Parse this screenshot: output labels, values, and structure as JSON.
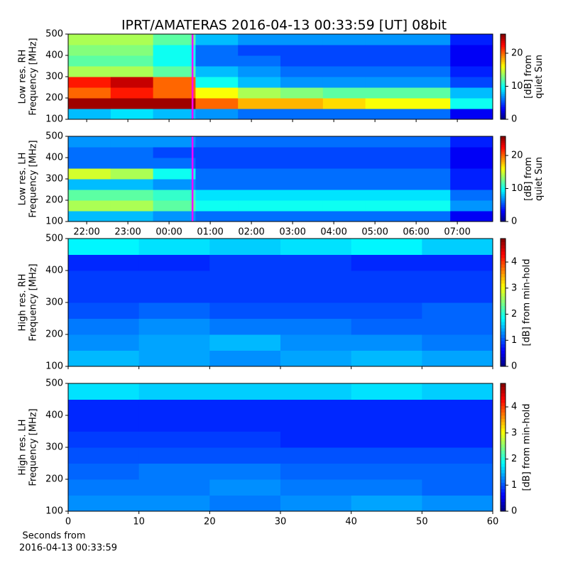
{
  "title": "IPRT/AMATERAS 2016-04-13 00:33:59 [UT]   08bit",
  "xlabel": [
    "Seconds from",
    "2016-04-13 00:33:59"
  ],
  "chart_data": [
    {
      "type": "heatmap",
      "colormap": "jet",
      "ylabel": [
        "Low res. RH",
        "Frequency [MHz]"
      ],
      "ylim": [
        100,
        500
      ],
      "yticks": [
        100,
        200,
        300,
        400,
        500
      ],
      "xlim": [
        21.55,
        31.86
      ],
      "xticks": [
        {
          "value": 22,
          "label": "22:00"
        },
        {
          "value": 23,
          "label": "23:00"
        },
        {
          "value": 24,
          "label": "00:00"
        },
        {
          "value": 25,
          "label": "01:00"
        },
        {
          "value": 26,
          "label": "02:00"
        },
        {
          "value": 27,
          "label": "03:00"
        },
        {
          "value": 28,
          "label": "04:00"
        },
        {
          "value": 29,
          "label": "05:00"
        },
        {
          "value": 30,
          "label": "06:00"
        },
        {
          "value": 31,
          "label": "07:00"
        }
      ],
      "show_xticklabels": false,
      "marker_x": 24.57,
      "marker_color": "#ff00ff",
      "clim": [
        0,
        25.8
      ],
      "cticks": [
        0,
        10,
        20
      ],
      "clabel": [
        "[dB] from",
        "quiet Sun"
      ],
      "z": [
        [
          8,
          9,
          8,
          7,
          6,
          6,
          6,
          6,
          6,
          3
        ],
        [
          25,
          25,
          25,
          20,
          18,
          18,
          17,
          16,
          16,
          10
        ],
        [
          20,
          22,
          20,
          16,
          14,
          13,
          12,
          12,
          12,
          8
        ],
        [
          22,
          24,
          20,
          10,
          8,
          7,
          7,
          7,
          7,
          5
        ],
        [
          14,
          14,
          12,
          8,
          7,
          6,
          6,
          6,
          6,
          4
        ],
        [
          12,
          12,
          10,
          6,
          6,
          5,
          5,
          5,
          5,
          3
        ],
        [
          13,
          13,
          10,
          6,
          5,
          5,
          5,
          5,
          5,
          3
        ],
        [
          14,
          14,
          12,
          8,
          7,
          7,
          7,
          7,
          7,
          4
        ]
      ]
    },
    {
      "type": "heatmap",
      "colormap": "jet",
      "ylabel": [
        "Low res. LH",
        "Frequency [MHz]"
      ],
      "ylim": [
        100,
        500
      ],
      "yticks": [
        100,
        200,
        300,
        400,
        500
      ],
      "xlim": [
        21.55,
        31.86
      ],
      "xticks": [
        {
          "value": 22,
          "label": "22:00"
        },
        {
          "value": 23,
          "label": "23:00"
        },
        {
          "value": 24,
          "label": "00:00"
        },
        {
          "value": 25,
          "label": "01:00"
        },
        {
          "value": 26,
          "label": "02:00"
        },
        {
          "value": 27,
          "label": "03:00"
        },
        {
          "value": 28,
          "label": "04:00"
        },
        {
          "value": 29,
          "label": "05:00"
        },
        {
          "value": 30,
          "label": "06:00"
        },
        {
          "value": 31,
          "label": "07:00"
        }
      ],
      "show_xticklabels": true,
      "marker_x": 24.57,
      "marker_color": "#ff00ff",
      "clim": [
        0,
        25.8
      ],
      "cticks": [
        0,
        10,
        20
      ],
      "clabel": [
        "[dB] from",
        "quiet Sun"
      ],
      "z": [
        [
          8,
          8,
          7,
          6,
          6,
          6,
          6,
          6,
          6,
          3
        ],
        [
          14,
          14,
          12,
          10,
          10,
          10,
          10,
          10,
          10,
          7
        ],
        [
          12,
          12,
          11,
          9,
          9,
          9,
          9,
          9,
          9,
          6
        ],
        [
          8,
          8,
          7,
          6,
          6,
          6,
          6,
          6,
          6,
          4
        ],
        [
          15,
          14,
          10,
          6,
          6,
          6,
          6,
          6,
          6,
          4
        ],
        [
          6,
          6,
          6,
          5,
          5,
          5,
          5,
          5,
          5,
          3
        ],
        [
          6,
          6,
          5,
          5,
          5,
          5,
          5,
          5,
          5,
          3
        ],
        [
          7,
          7,
          7,
          6,
          6,
          6,
          6,
          6,
          6,
          4
        ]
      ]
    },
    {
      "type": "heatmap",
      "colormap": "jet",
      "ylabel": [
        "High res. RH",
        "Frequency [MHz]"
      ],
      "ylim": [
        100,
        500
      ],
      "yticks": [
        100,
        200,
        300,
        400,
        500
      ],
      "xlim": [
        0,
        60
      ],
      "xticks": [
        0,
        10,
        20,
        30,
        40,
        50,
        60
      ],
      "show_xticklabels": false,
      "clim": [
        0,
        4.9
      ],
      "cticks": [
        0,
        1,
        2,
        3,
        4
      ],
      "clabel": [
        "[dB] from min-hold"
      ],
      "z": [
        [
          1.5,
          1.4,
          1.3,
          1.4,
          1.5,
          1.4
        ],
        [
          1.3,
          1.4,
          1.5,
          1.3,
          1.3,
          1.2
        ],
        [
          1.2,
          1.3,
          1.2,
          1.2,
          1.1,
          1.1
        ],
        [
          1.0,
          1.1,
          1.0,
          1.0,
          1.0,
          1.1
        ],
        [
          0.9,
          0.9,
          0.9,
          0.9,
          0.9,
          0.9
        ],
        [
          0.9,
          0.9,
          0.9,
          0.9,
          0.9,
          0.9
        ],
        [
          0.8,
          0.8,
          0.9,
          0.9,
          0.8,
          0.8
        ],
        [
          1.8,
          1.7,
          1.6,
          1.7,
          1.8,
          1.6
        ]
      ]
    },
    {
      "type": "heatmap",
      "colormap": "jet",
      "ylabel": [
        "High res. LH",
        "Frequency [MHz]"
      ],
      "ylim": [
        100,
        500
      ],
      "yticks": [
        100,
        200,
        300,
        400,
        500
      ],
      "xlim": [
        0,
        60
      ],
      "xticks": [
        0,
        10,
        20,
        30,
        40,
        50,
        60
      ],
      "show_xticklabels": true,
      "clim": [
        0,
        4.9
      ],
      "cticks": [
        0,
        1,
        2,
        3,
        4
      ],
      "clabel": [
        "[dB] from min-hold"
      ],
      "z": [
        [
          1.3,
          1.3,
          1.2,
          1.3,
          1.4,
          1.3
        ],
        [
          1.2,
          1.2,
          1.3,
          1.2,
          1.2,
          1.1
        ],
        [
          1.1,
          1.2,
          1.2,
          1.1,
          1.1,
          1.1
        ],
        [
          1.0,
          1.0,
          1.0,
          1.0,
          1.0,
          1.0
        ],
        [
          0.9,
          0.9,
          0.9,
          0.8,
          0.8,
          0.8
        ],
        [
          0.8,
          0.8,
          0.8,
          0.8,
          0.8,
          0.8
        ],
        [
          0.8,
          0.8,
          0.8,
          0.8,
          0.8,
          0.8
        ],
        [
          1.7,
          1.6,
          1.6,
          1.6,
          1.7,
          1.6
        ]
      ]
    }
  ]
}
